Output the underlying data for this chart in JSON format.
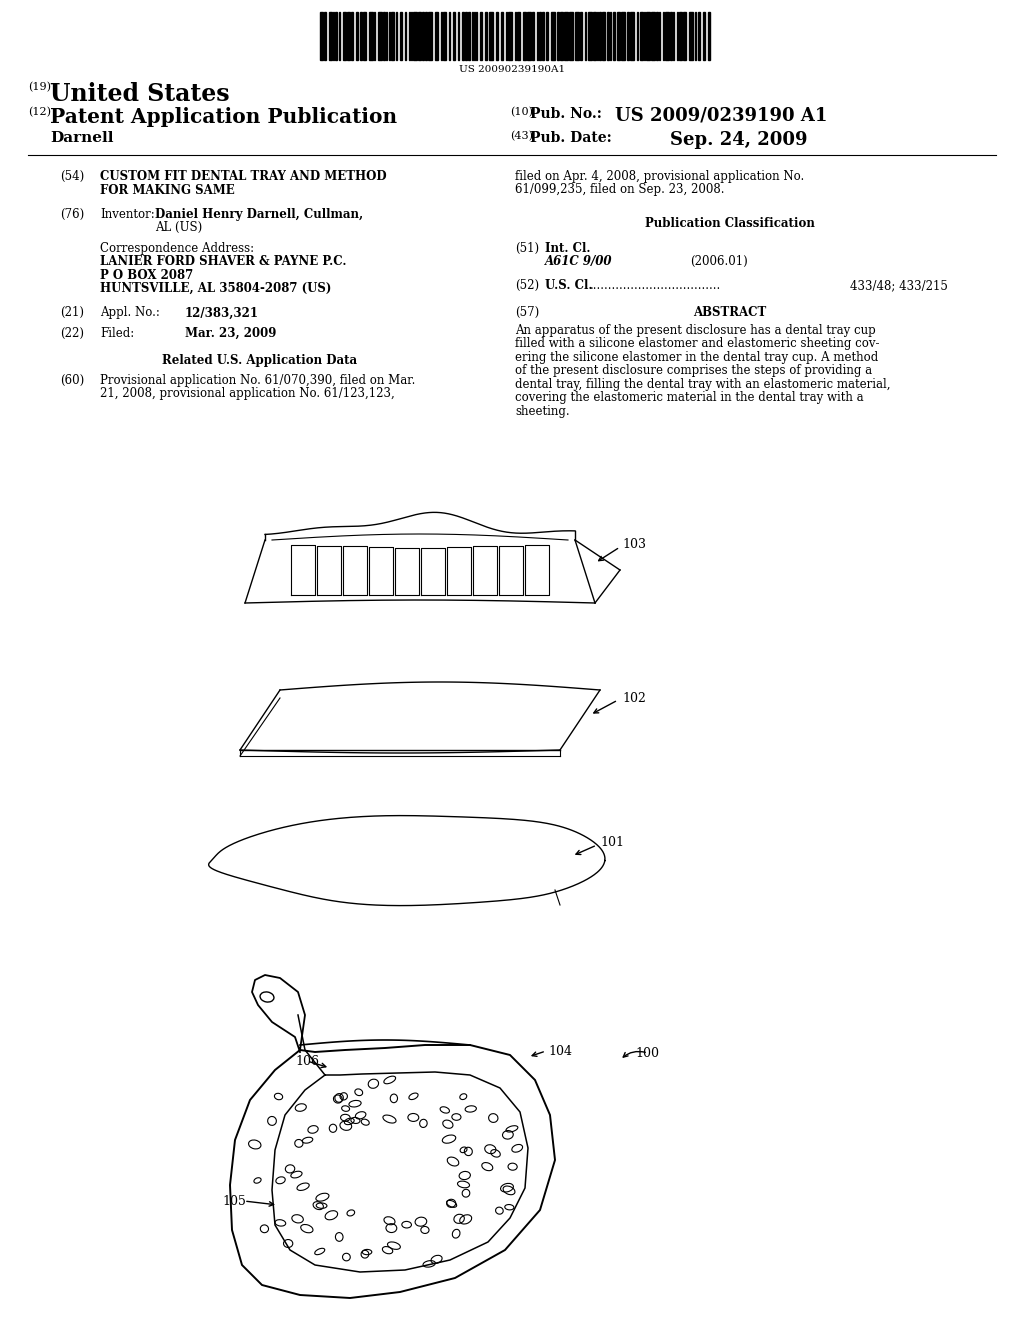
{
  "bg_color": "#ffffff",
  "title_country": "United States",
  "title_type": "Patent Application Publication",
  "inventor_last": "Darnell",
  "num19": "(19)",
  "num12": "(12)",
  "num10": "(10)",
  "num43": "(43)",
  "pub_no_label": "Pub. No.:",
  "pub_no_value": "US 2009/0239190 A1",
  "pub_date_label": "Pub. Date:",
  "pub_date_value": "Sep. 24, 2009",
  "barcode_text": "US 20090239190A1",
  "sec54_num": "(54)",
  "sec54_title1": "CUSTOM FIT DENTAL TRAY AND METHOD",
  "sec54_title2": "FOR MAKING SAME",
  "sec76_num": "(76)",
  "sec76_label": "Inventor:",
  "sec76_name_bold": "Daniel Henry Darnell,",
  "sec76_city": "Cullman,",
  "sec76_state": "AL (US)",
  "corr_label": "Correspondence Address:",
  "corr_line1": "LANIER FORD SHAVER & PAYNE P.C.",
  "corr_line2": "P O BOX 2087",
  "corr_line3": "HUNTSVILLE, AL 35804-2087 (US)",
  "sec21_num": "(21)",
  "sec21_label": "Appl. No.:",
  "sec21_value": "12/383,321",
  "sec22_num": "(22)",
  "sec22_label": "Filed:",
  "sec22_value": "Mar. 23, 2009",
  "related_header": "Related U.S. Application Data",
  "sec60_num": "(60)",
  "sec60_text1": "Provisional application No. 61/070,390, filed on Mar.",
  "sec60_text2": "21, 2008, provisional application No. 61/123,123,",
  "right_filed_text1": "filed on Apr. 4, 2008, provisional application No.",
  "right_filed_text2": "61/099,235, filed on Sep. 23, 2008.",
  "pub_class_header": "Publication Classification",
  "sec51_num": "(51)",
  "sec51_label": "Int. Cl.",
  "sec51_class": "A61C 9/00",
  "sec51_year": "(2006.01)",
  "sec52_num": "(52)",
  "sec52_label": "U.S. Cl.",
  "sec52_value": "433/48; 433/215",
  "sec57_num": "(57)",
  "sec57_label": "ABSTRACT",
  "abstract_lines": [
    "An apparatus of the present disclosure has a dental tray cup",
    "filled with a silicone elastomer and elastomeric sheeting cov-",
    "ering the silicone elastomer in the dental tray cup. A method",
    "of the present disclosure comprises the steps of providing a",
    "dental tray, filling the dental tray with an elastomeric material,",
    "covering the elastomeric material in the dental tray with a",
    "sheeting."
  ],
  "label_103": "103",
  "label_102": "102",
  "label_101": "101",
  "label_100": "100",
  "label_104": "104",
  "label_105": "105",
  "label_106": "106",
  "lh": 13.5,
  "fs": 8.5
}
